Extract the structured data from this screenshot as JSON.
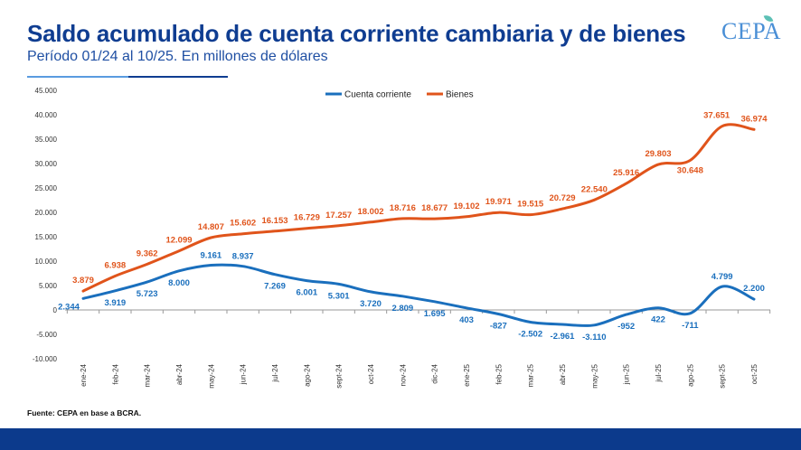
{
  "header": {
    "title": "Saldo acumulado de cuenta corriente cambiaria y de bienes",
    "subtitle": "Período 01/24 al 10/25. En millones de dólares"
  },
  "logo": {
    "text": "CEPA"
  },
  "footer": {
    "source": "Fuente: CEPA en base a BCRA."
  },
  "colors": {
    "cuenta_corriente": "#1a6fbd",
    "bienes": "#e0541b",
    "title": "#0f3d91",
    "footer_bar": "#0c3a8c"
  },
  "chart_data": {
    "type": "line",
    "categories": [
      "ene-24",
      "feb-24",
      "mar-24",
      "abr-24",
      "may-24",
      "jun-24",
      "jul-24",
      "ago-24",
      "sept-24",
      "oct-24",
      "nov-24",
      "dic-24",
      "ene-25",
      "feb-25",
      "mar-25",
      "abr-25",
      "may-25",
      "jun-25",
      "jul-25",
      "ago-25",
      "sept-25",
      "oct-25"
    ],
    "series": [
      {
        "name": "Cuenta corriente",
        "color": "#1a6fbd",
        "values": [
          2344,
          3919,
          5723,
          8000,
          9161,
          8937,
          7269,
          6001,
          5301,
          3720,
          2809,
          1695,
          403,
          -827,
          -2502,
          -2961,
          -3110,
          -952,
          422,
          -711,
          4799,
          2200
        ],
        "labels": [
          "2.344",
          "3.919",
          "5.723",
          "8.000",
          "9.161",
          "8.937",
          "7.269",
          "6.001",
          "5.301",
          "3.720",
          "2.809",
          "1.695",
          "403",
          "-827",
          "-2.502",
          "-2.961",
          "-3.110",
          "-952",
          "422",
          "-711",
          "4.799",
          "2.200"
        ]
      },
      {
        "name": "Bienes",
        "color": "#e0541b",
        "values": [
          3879,
          6938,
          9362,
          12099,
          14807,
          15602,
          16153,
          16729,
          17257,
          18002,
          18716,
          18677,
          19102,
          19971,
          19515,
          20729,
          22540,
          25916,
          29803,
          30648,
          37651,
          36974
        ],
        "labels": [
          "3.879",
          "6.938",
          "9.362",
          "12.099",
          "14.807",
          "15.602",
          "16.153",
          "16.729",
          "17.257",
          "18.002",
          "18.716",
          "18.677",
          "19.102",
          "19.971",
          "19.515",
          "20.729",
          "22.540",
          "25.916",
          "29.803",
          "30.648",
          "37.651",
          "36.974"
        ]
      }
    ],
    "yticks": [
      -10000,
      -5000,
      0,
      5000,
      10000,
      15000,
      20000,
      25000,
      30000,
      35000,
      40000,
      45000
    ],
    "ytick_labels": [
      "-10.000",
      "-5.000",
      "0",
      "5.000",
      "10.000",
      "15.000",
      "20.000",
      "25.000",
      "30.000",
      "35.000",
      "40.000",
      "45.000"
    ],
    "ylim": [
      -10000,
      45000
    ],
    "grid": false,
    "legend": "top-center",
    "title": "",
    "xlabel": "",
    "ylabel": ""
  }
}
